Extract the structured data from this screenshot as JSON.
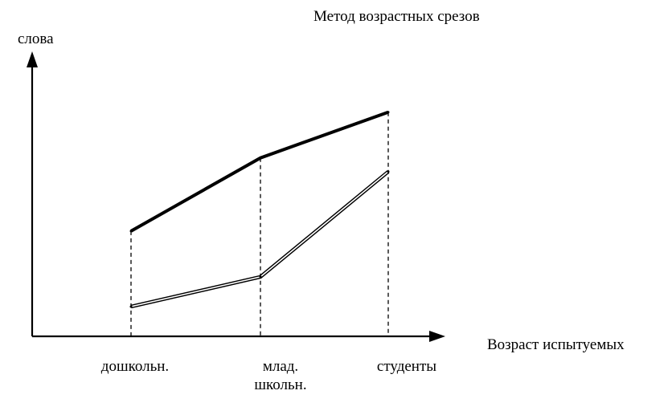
{
  "chart_data": {
    "type": "line",
    "title": "Метод возрастных срезов",
    "ylabel": "слова",
    "xlabel": "Возраст испытуемых",
    "categories": [
      "дошкольн.",
      "млад.\nшкольн.",
      "студенты"
    ],
    "ylim": [
      0,
      100
    ],
    "grid": false,
    "yticks_shown": false,
    "series": [
      {
        "style": "solid-thick",
        "color": "#000000",
        "values": [
          46,
          78,
          98
        ]
      },
      {
        "style": "double-line",
        "color": "#000000",
        "values": [
          13,
          26,
          72
        ]
      }
    ]
  }
}
